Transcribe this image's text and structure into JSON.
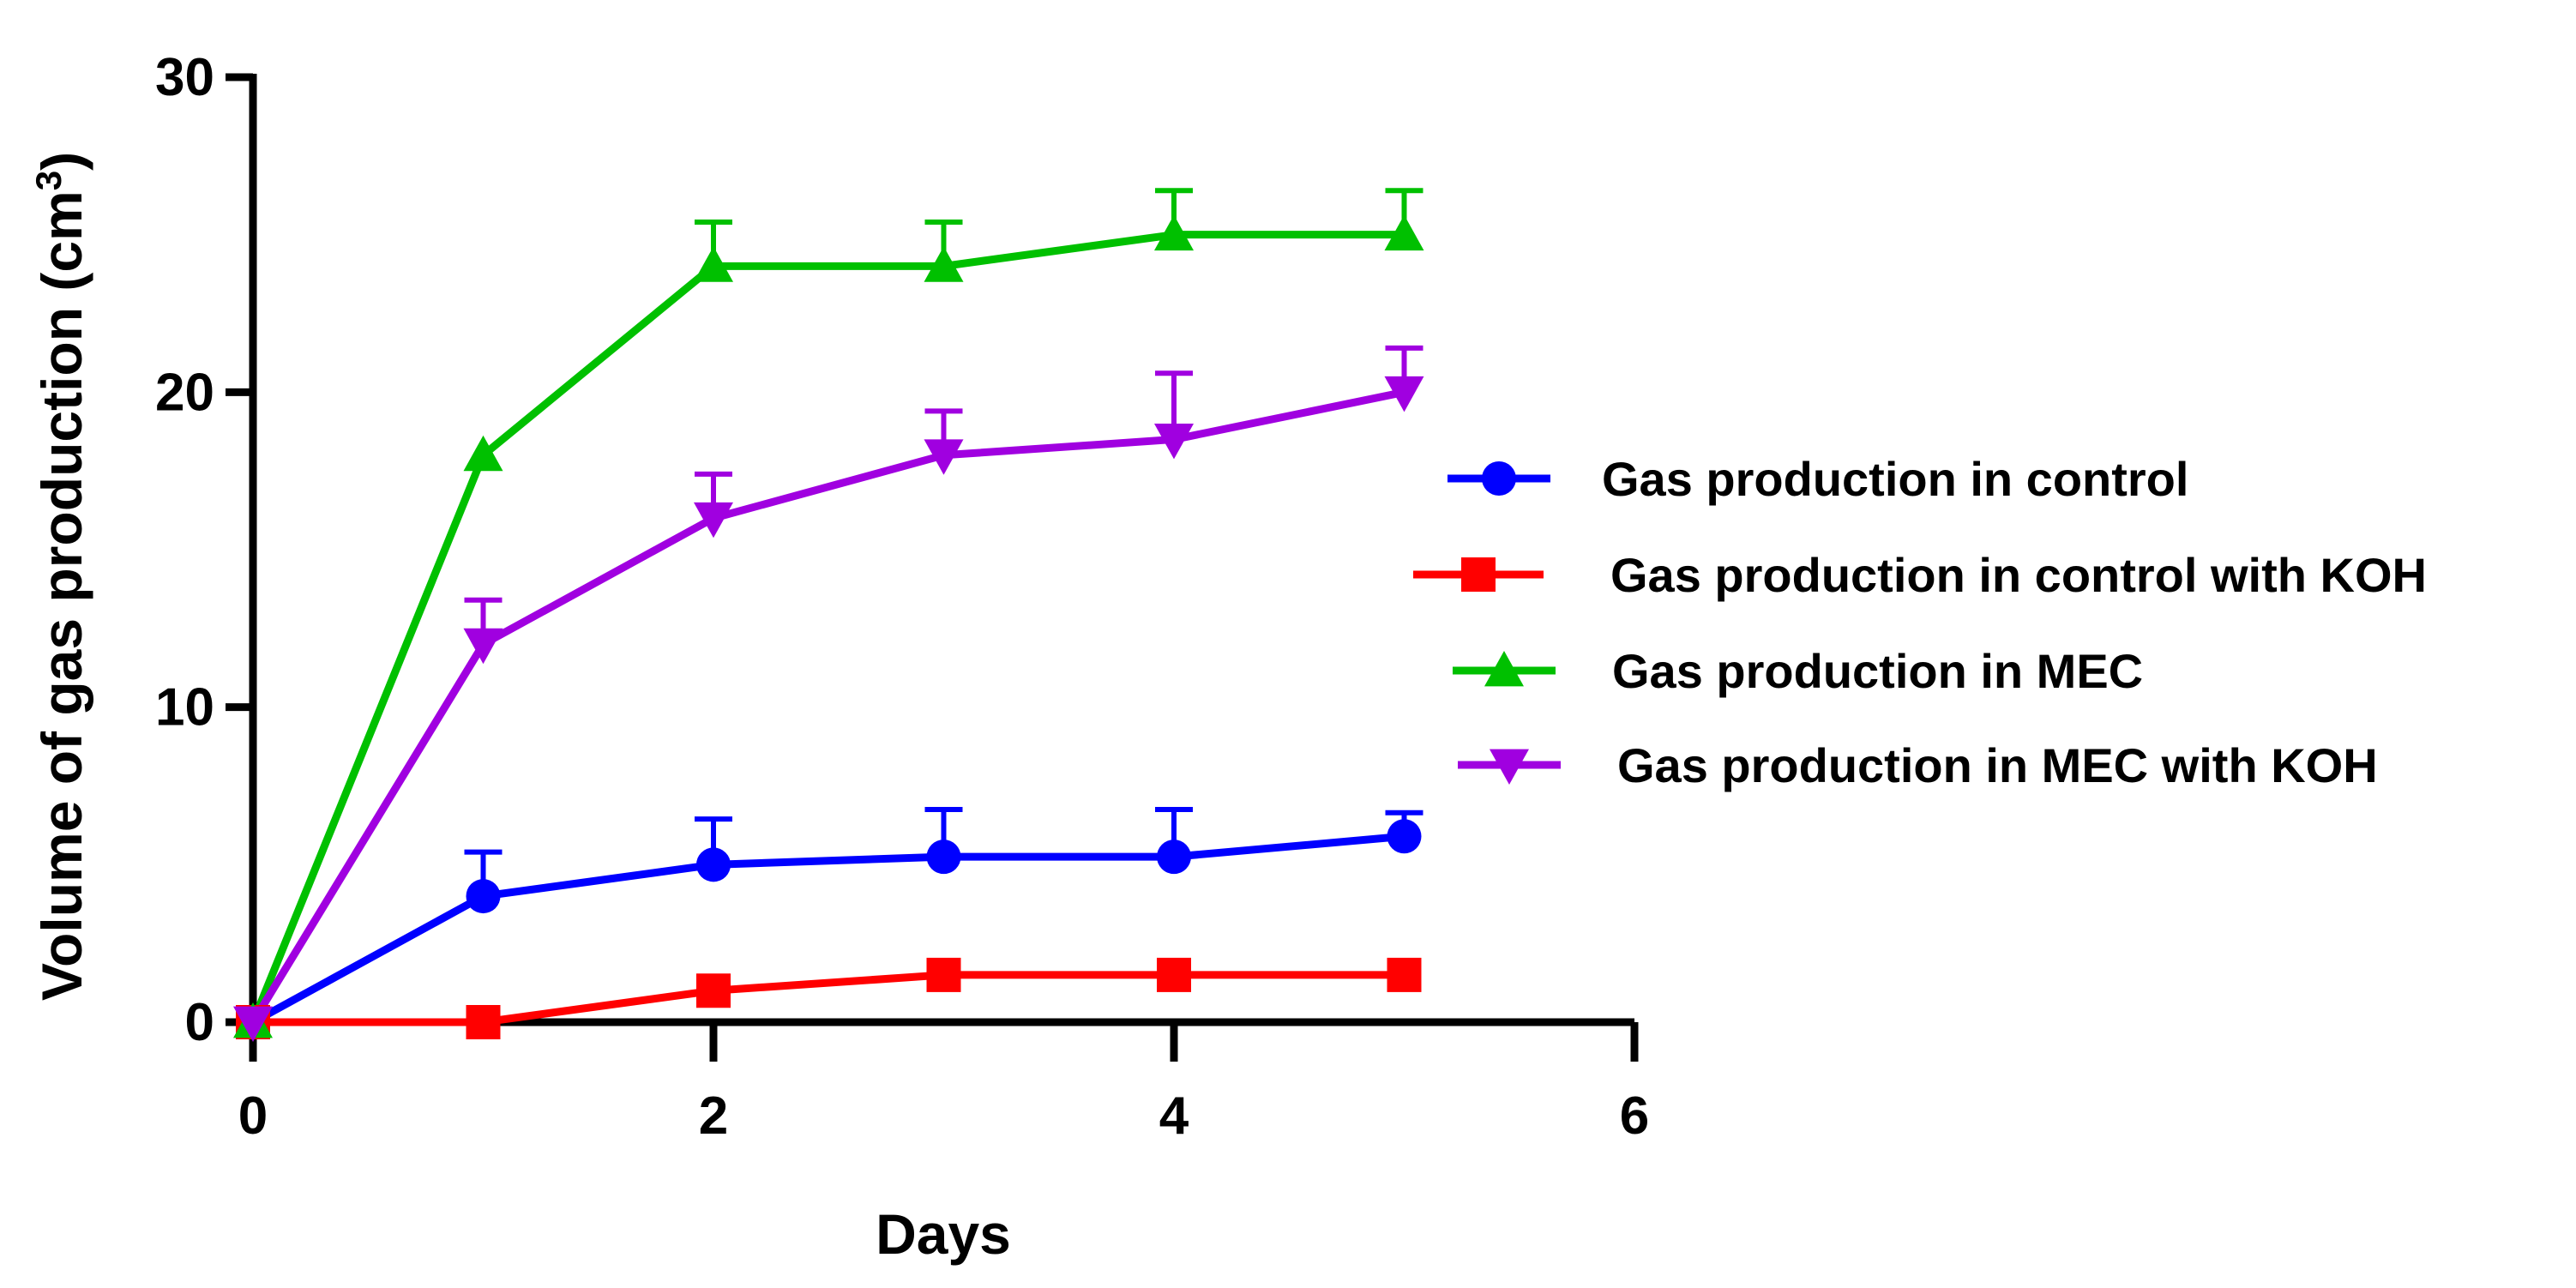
{
  "chart_data": {
    "type": "line",
    "title": "",
    "xlabel": "Days",
    "ylabel": "Volume of gas production (cm",
    "ylabel_superscript": "3",
    "ylabel_suffix": ")",
    "xlim": [
      0,
      6
    ],
    "ylim": [
      0,
      30
    ],
    "xticks": [
      "0",
      "2",
      "4",
      "6"
    ],
    "yticks": [
      "0",
      "10",
      "20",
      "30"
    ],
    "grid": false,
    "legend_position": "right",
    "x": [
      0,
      1,
      2,
      3,
      4,
      5
    ],
    "series": [
      {
        "name": "Gas production in control",
        "color": "#0000ff",
        "marker": "circle",
        "values": [
          0,
          4,
          5,
          5.25,
          5.25,
          5.9
        ],
        "error_upper": [
          0,
          1.4,
          1.45,
          1.5,
          1.5,
          0.75
        ]
      },
      {
        "name": "Gas production in control with KOH",
        "color": "#ff0000",
        "marker": "square",
        "values": [
          0,
          0,
          1,
          1.5,
          1.5,
          1.5
        ],
        "error_upper": [
          0,
          0,
          0,
          0,
          0,
          0
        ]
      },
      {
        "name": "Gas production in MEC",
        "color": "#00c000",
        "marker": "triangle-up",
        "values": [
          0,
          18,
          24,
          24,
          25,
          25
        ],
        "error_upper": [
          0,
          0,
          1.4,
          1.4,
          1.4,
          1.4
        ]
      },
      {
        "name": "Gas production in MEC with KOH",
        "color": "#a000e0",
        "marker": "triangle-down",
        "values": [
          0,
          12,
          16,
          18,
          18.5,
          20
        ],
        "error_upper": [
          0,
          1.4,
          1.4,
          1.4,
          2.1,
          1.4
        ]
      }
    ]
  }
}
